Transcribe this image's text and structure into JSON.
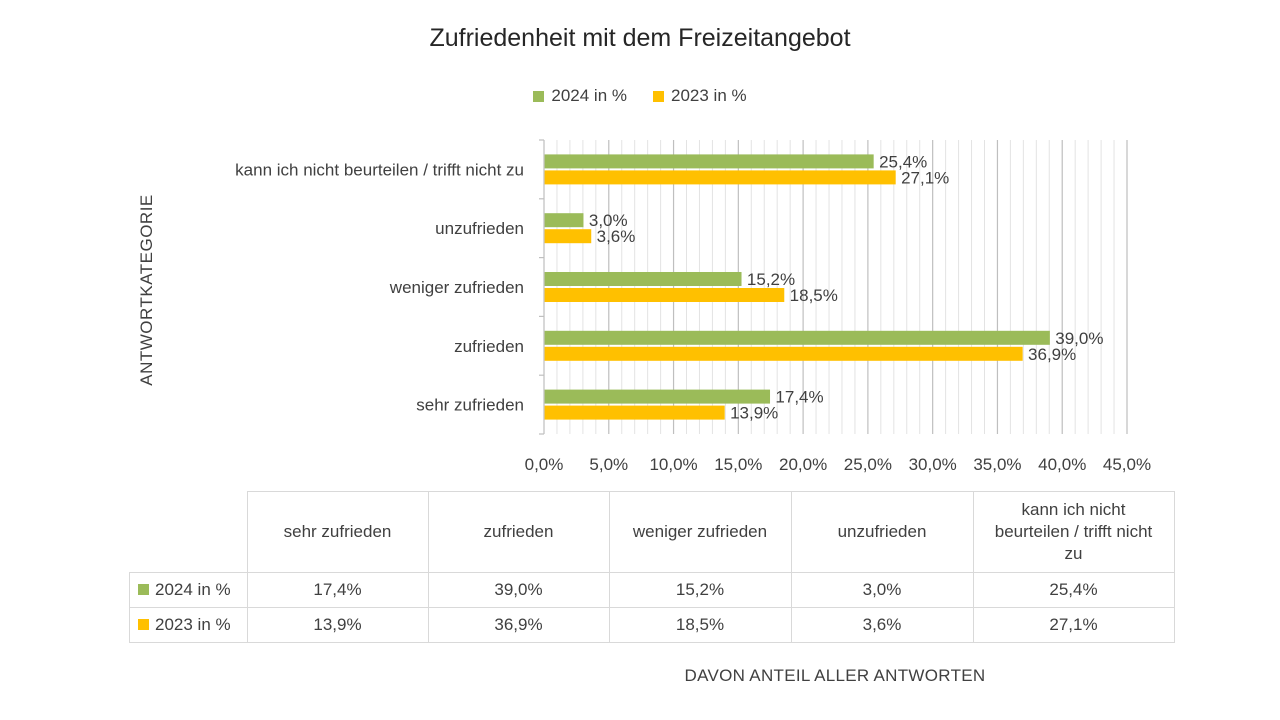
{
  "chart_data": {
    "type": "bar",
    "orientation": "horizontal",
    "title": "Zufriedenheit mit dem Freizeitangebot",
    "ylabel": "ANTWORTKATEGORIE",
    "xlabel": "DAVON ANTEIL ALLER ANTWORTEN",
    "categories": [
      "sehr zufrieden",
      "zufrieden",
      "weniger zufrieden",
      "unzufrieden",
      "kann ich nicht beurteilen / trifft nicht zu"
    ],
    "series": [
      {
        "name": "2024 in %",
        "color": "#9BBB59",
        "values": [
          17.4,
          39.0,
          15.2,
          3.0,
          25.4
        ],
        "labels": [
          "17,4%",
          "39,0%",
          "15,2%",
          "3,0%",
          "25,4%"
        ]
      },
      {
        "name": "2023 in %",
        "color": "#FFC000",
        "values": [
          13.9,
          36.9,
          18.5,
          3.6,
          27.1
        ],
        "labels": [
          "13,9%",
          "36,9%",
          "18,5%",
          "3,6%",
          "27,1%"
        ]
      }
    ],
    "xlim": [
      0,
      45
    ],
    "x_ticks": [
      0,
      5,
      10,
      15,
      20,
      25,
      30,
      35,
      40,
      45
    ],
    "x_tick_labels": [
      "0,0%",
      "5,0%",
      "10,0%",
      "15,0%",
      "20,0%",
      "25,0%",
      "30,0%",
      "35,0%",
      "40,0%",
      "45,0%"
    ],
    "grid": true,
    "legend": "top-center",
    "data_table": true
  }
}
